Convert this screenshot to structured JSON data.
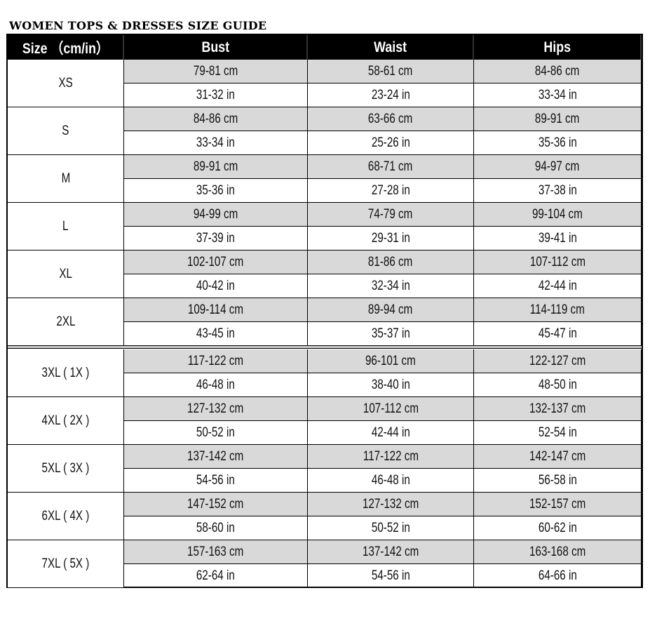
{
  "title": "WOMEN TOPS & DRESSES SIZE GUIDE",
  "headers": [
    "Size （cm/in）",
    "Bust",
    "Waist",
    "Hips"
  ],
  "rows": [
    {
      "size": "XS",
      "cm": [
        "79-81 cm",
        "58-61 cm",
        "84-86 cm"
      ],
      "in": [
        "31-32 in",
        "23-24 in",
        "33-34 in"
      ]
    },
    {
      "size": "S",
      "cm": [
        "84-86 cm",
        "63-66 cm",
        "89-91 cm"
      ],
      "in": [
        "33-34 in",
        "25-26 in",
        "35-36 in"
      ]
    },
    {
      "size": "M",
      "cm": [
        "89-91 cm",
        "68-71 cm",
        "94-97 cm"
      ],
      "in": [
        "35-36 in",
        "27-28 in",
        "37-38 in"
      ]
    },
    {
      "size": "L",
      "cm": [
        "94-99 cm",
        "74-79 cm",
        "99-104 cm"
      ],
      "in": [
        "37-39 in",
        "29-31 in",
        "39-41 in"
      ]
    },
    {
      "size": "XL",
      "cm": [
        "102-107 cm",
        "81-86 cm",
        "107-112 cm"
      ],
      "in": [
        "40-42 in",
        "32-34 in",
        "42-44 in"
      ]
    },
    {
      "size": "2XL",
      "cm": [
        "109-114 cm",
        "89-94 cm",
        "114-119 cm"
      ],
      "in": [
        "43-45 in",
        "35-37 in",
        "45-47 in"
      ]
    },
    {
      "size": "3XL ( 1X )",
      "cm": [
        "117-122 cm",
        "96-101 cm",
        "122-127 cm"
      ],
      "in": [
        "46-48 in",
        "38-40 in",
        "48-50 in"
      ]
    },
    {
      "size": "4XL ( 2X )",
      "cm": [
        "127-132 cm",
        "107-112 cm",
        "132-137 cm"
      ],
      "in": [
        "50-52 in",
        "42-44 in",
        "52-54 in"
      ]
    },
    {
      "size": "5XL ( 3X )",
      "cm": [
        "137-142 cm",
        "117-122 cm",
        "142-147 cm"
      ],
      "in": [
        "54-56 in",
        "46-48 in",
        "56-58 in"
      ]
    },
    {
      "size": "6XL ( 4X )",
      "cm": [
        "147-152 cm",
        "127-132 cm",
        "152-157 cm"
      ],
      "in": [
        "58-60 in",
        "50-52 in",
        "60-62 in"
      ]
    },
    {
      "size": "7XL ( 5X )",
      "cm": [
        "157-163 cm",
        "137-142 cm",
        "163-168 cm"
      ],
      "in": [
        "62-64 in",
        "54-56 in",
        "64-66 in"
      ]
    }
  ]
}
